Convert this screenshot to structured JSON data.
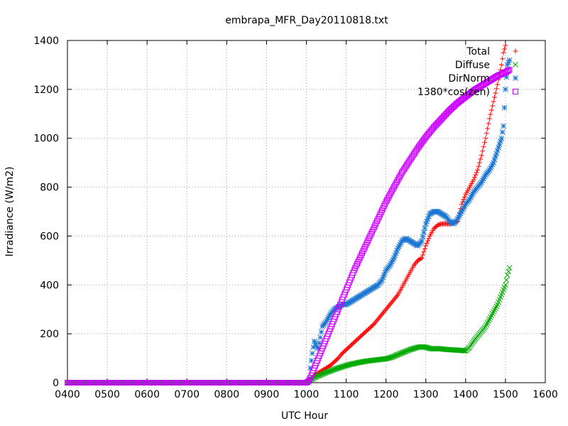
{
  "chart_data": {
    "type": "scatter",
    "title": "embrapa_MFR_Day20110818.txt",
    "xlabel": "UTC Hour",
    "ylabel": "Irradiance (W/m2)",
    "xlim": [
      400,
      1600
    ],
    "ylim": [
      0,
      1400
    ],
    "x_ticks": [
      "0400",
      "0500",
      "0600",
      "0700",
      "0800",
      "0900",
      "1000",
      "1100",
      "1200",
      "1300",
      "1400",
      "1500",
      "1600"
    ],
    "y_ticks": [
      "0",
      "200",
      "400",
      "600",
      "800",
      "1000",
      "1200",
      "1400"
    ],
    "grid": true,
    "legend_position": "top-right",
    "series": [
      {
        "name": "Total",
        "marker": "plus",
        "color": "#ff0000",
        "x": [
          400,
          600,
          800,
          1000,
          1005,
          1010,
          1020,
          1030,
          1040,
          1050,
          1060,
          1070,
          1080,
          1090,
          1100,
          1110,
          1120,
          1130,
          1140,
          1150,
          1160,
          1170,
          1180,
          1190,
          1200,
          1210,
          1220,
          1230,
          1240,
          1250,
          1260,
          1270,
          1280,
          1290,
          1300,
          1310,
          1320,
          1330,
          1340,
          1350,
          1360,
          1370,
          1380,
          1390,
          1400,
          1410,
          1420,
          1430,
          1440,
          1450,
          1460,
          1470,
          1480,
          1490,
          1495,
          1500
        ],
        "y": [
          0,
          0,
          0,
          0,
          5,
          15,
          30,
          40,
          50,
          60,
          70,
          85,
          100,
          120,
          135,
          150,
          165,
          180,
          195,
          210,
          225,
          240,
          260,
          280,
          300,
          320,
          340,
          360,
          390,
          420,
          450,
          480,
          500,
          510,
          560,
          600,
          630,
          645,
          650,
          650,
          650,
          655,
          660,
          730,
          770,
          800,
          830,
          870,
          930,
          1000,
          1080,
          1150,
          1220,
          1300,
          1350,
          1380
        ]
      },
      {
        "name": "Diffuse",
        "marker": "cross",
        "color": "#00aa00",
        "x": [
          400,
          600,
          800,
          1000,
          1010,
          1020,
          1030,
          1040,
          1050,
          1060,
          1070,
          1080,
          1090,
          1100,
          1110,
          1120,
          1130,
          1140,
          1150,
          1160,
          1170,
          1180,
          1190,
          1200,
          1210,
          1220,
          1230,
          1240,
          1250,
          1260,
          1270,
          1280,
          1290,
          1300,
          1310,
          1320,
          1330,
          1340,
          1350,
          1360,
          1370,
          1380,
          1390,
          1400,
          1410,
          1420,
          1430,
          1440,
          1450,
          1460,
          1470,
          1480,
          1490,
          1500,
          1505,
          1510
        ],
        "y": [
          0,
          0,
          0,
          0,
          10,
          20,
          28,
          35,
          42,
          48,
          54,
          60,
          65,
          70,
          75,
          78,
          82,
          85,
          88,
          90,
          92,
          94,
          96,
          98,
          102,
          108,
          115,
          122,
          128,
          135,
          140,
          145,
          147,
          145,
          140,
          138,
          140,
          138,
          136,
          135,
          134,
          133,
          132,
          130,
          145,
          170,
          190,
          210,
          230,
          260,
          290,
          320,
          360,
          400,
          440,
          470
        ]
      },
      {
        "name": "DirNorm",
        "marker": "star",
        "color": "#1a75d2",
        "x": [
          1010,
          1015,
          1020,
          1025,
          1030,
          1040,
          1050,
          1060,
          1070,
          1080,
          1090,
          1100,
          1110,
          1120,
          1130,
          1140,
          1150,
          1160,
          1170,
          1180,
          1190,
          1200,
          1210,
          1220,
          1230,
          1240,
          1250,
          1260,
          1270,
          1280,
          1290,
          1300,
          1310,
          1320,
          1330,
          1340,
          1350,
          1360,
          1370,
          1380,
          1390,
          1400,
          1410,
          1420,
          1430,
          1440,
          1450,
          1460,
          1470,
          1480,
          1490,
          1495,
          1500,
          1505,
          1510
        ],
        "y": [
          60,
          120,
          170,
          150,
          140,
          230,
          250,
          280,
          300,
          310,
          320,
          320,
          330,
          340,
          350,
          360,
          370,
          380,
          390,
          400,
          420,
          460,
          480,
          510,
          550,
          580,
          590,
          580,
          570,
          560,
          580,
          650,
          690,
          700,
          700,
          690,
          680,
          660,
          650,
          670,
          700,
          730,
          750,
          780,
          800,
          820,
          850,
          870,
          900,
          950,
          1000,
          1050,
          1200,
          1300,
          1320
        ]
      },
      {
        "name": "1380*cos(zen)",
        "marker": "square",
        "color": "#cc00ff",
        "x": [
          400,
          600,
          800,
          1000,
          1005,
          1010,
          1020,
          1030,
          1040,
          1050,
          1060,
          1070,
          1080,
          1090,
          1100,
          1120,
          1140,
          1160,
          1180,
          1200,
          1220,
          1240,
          1260,
          1280,
          1300,
          1320,
          1340,
          1360,
          1380,
          1400,
          1420,
          1440,
          1460,
          1480,
          1500,
          1510
        ],
        "y": [
          0,
          0,
          0,
          0,
          5,
          20,
          60,
          100,
          140,
          180,
          220,
          260,
          300,
          340,
          380,
          460,
          530,
          600,
          670,
          740,
          800,
          860,
          910,
          960,
          1005,
          1045,
          1080,
          1115,
          1145,
          1170,
          1195,
          1215,
          1235,
          1255,
          1270,
          1280
        ]
      }
    ]
  }
}
